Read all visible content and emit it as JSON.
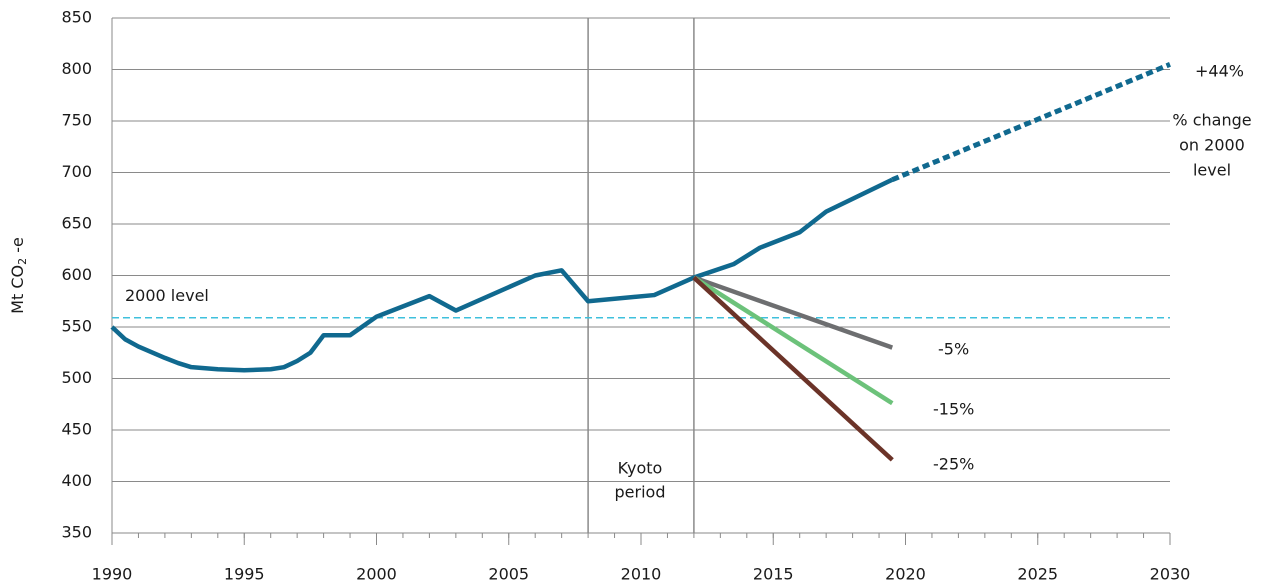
{
  "chart_data": {
    "type": "line",
    "y_label": {
      "main": "Mt CO",
      "sub": "2",
      "suffix": " -e"
    },
    "xlim": [
      1990,
      2030
    ],
    "xticks": [
      1990,
      1995,
      2000,
      2005,
      2010,
      2015,
      2020,
      2025,
      2030
    ],
    "ylim": [
      350,
      850
    ],
    "yticks": [
      350,
      400,
      450,
      500,
      550,
      600,
      650,
      700,
      750,
      800,
      850
    ],
    "grid": true,
    "vlines": [
      2008,
      2012
    ],
    "reference_line": {
      "value": 559,
      "color": "#3fc0dc",
      "label": "2000 level"
    },
    "series": [
      {
        "color": "#10698f",
        "style": "solid",
        "x": [
          1990,
          1990.5,
          1991,
          1992,
          1992.5,
          1993,
          1994,
          1995,
          1996,
          1996.5,
          1997,
          1997.5,
          1998,
          1999,
          2000,
          2002,
          2003,
          2006,
          2007,
          2008,
          2010.5,
          2012,
          2013.5,
          2014.5,
          2016,
          2017,
          2019.5
        ],
        "values": [
          550,
          538,
          531,
          520,
          515,
          511,
          509,
          508,
          509,
          511,
          517,
          525,
          542,
          542,
          560,
          580,
          566,
          600,
          605,
          575,
          581,
          598,
          611,
          627,
          642,
          662,
          693
        ]
      },
      {
        "color": "#10698f",
        "style": "dashed",
        "label": "+44%",
        "x": [
          2019.5,
          2030
        ],
        "values": [
          693,
          805
        ]
      },
      {
        "color": "#6d6e70",
        "style": "solid",
        "label": "-5%",
        "x": [
          2012,
          2019.5
        ],
        "values": [
          598,
          530
        ]
      },
      {
        "color": "#6cc27a",
        "style": "solid",
        "label": "-15%",
        "x": [
          2012,
          2019.5
        ],
        "values": [
          598,
          476
        ]
      },
      {
        "color": "#6b3328",
        "style": "solid",
        "label": "-25%",
        "x": [
          2012,
          2019.5
        ],
        "values": [
          598,
          421
        ]
      }
    ],
    "annotations": {
      "kyoto": [
        "Kyoto",
        "period"
      ],
      "change_note": [
        "% change",
        "on 2000",
        "level"
      ]
    }
  }
}
